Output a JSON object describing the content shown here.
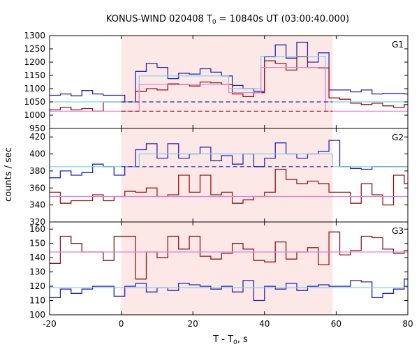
{
  "chart_data": {
    "type": "line",
    "title": "KONUS-WIND 020408 T",
    "title_sub": "0",
    "title_rest": " = 10840s UT (03:00:40.000)",
    "xlabel": "T - T",
    "xlabel_sub": "0",
    "xlabel_rest": ", s",
    "ylabel": "counts / sec",
    "xlim": [
      -20,
      80
    ],
    "x_ticks": [
      -20,
      0,
      20,
      40,
      60,
      80
    ],
    "shaded_interval": [
      0,
      59
    ],
    "colors": {
      "blue": "#2626b4",
      "dark_red": "#8c1a1a",
      "light_blue": "#7fd0ec",
      "pink": "#e87fd0",
      "shade": "#fde8e8"
    },
    "panels": [
      {
        "label": "G1",
        "ylim": [
          950,
          1300
        ],
        "y_ticks": [
          950,
          1000,
          1050,
          1100,
          1150,
          1200,
          1250,
          1300
        ],
        "series": [
          {
            "role": "counts",
            "color_key": "blue",
            "x": [
              -20,
              -17,
              -14,
              -11,
              -8,
              -5,
              -2,
              1,
              4,
              7,
              10,
              13,
              16,
              19,
              22,
              25,
              28,
              31,
              34,
              37,
              40,
              43,
              46,
              49,
              52,
              55,
              58,
              61,
              64,
              67,
              70,
              73,
              76,
              79
            ],
            "y": [
              1075,
              1080,
              1073,
              1093,
              1080,
              1075,
              1075,
              1050,
              1165,
              1195,
              1180,
              1138,
              1158,
              1155,
              1175,
              1162,
              1148,
              1112,
              1100,
              1090,
              1220,
              1265,
              1215,
              1275,
              1200,
              1235,
              1095,
              1095,
              1088,
              1095,
              1080,
              1082,
              1082,
              1080
            ]
          },
          {
            "role": "counts",
            "color_key": "dark_red",
            "x": [
              -20,
              -17,
              -14,
              -11,
              -8,
              -5,
              -2,
              1,
              4,
              7,
              10,
              13,
              16,
              19,
              22,
              25,
              28,
              31,
              34,
              37,
              40,
              43,
              46,
              49,
              52,
              55,
              58,
              61,
              64,
              67,
              70,
              73,
              76,
              79
            ],
            "y": [
              1020,
              1030,
              1020,
              1025,
              1015,
              1050,
              1050,
              1050,
              1090,
              1100,
              1095,
              1118,
              1115,
              1110,
              1125,
              1122,
              1115,
              1080,
              1070,
              1085,
              1205,
              1195,
              1170,
              1220,
              1180,
              1178,
              1065,
              1060,
              1045,
              1040,
              1045,
              1035,
              1030,
              1040
            ]
          },
          {
            "role": "model",
            "color_key": "light_blue",
            "x": [
              -20,
              5,
              5,
              30,
              30,
              39,
              39,
              57,
              57,
              80
            ],
            "y": [
              1050,
              1050,
              1148,
              1148,
              1100,
              1100,
              1222,
              1222,
              1050,
              1050
            ]
          },
          {
            "role": "model",
            "color_key": "pink",
            "x": [
              -20,
              5,
              5,
              30,
              30,
              39,
              39,
              57,
              57,
              80
            ],
            "y": [
              1015,
              1015,
              1115,
              1115,
              1085,
              1085,
              1180,
              1180,
              1015,
              1015
            ]
          },
          {
            "role": "background",
            "color_key": "blue",
            "dashed": true,
            "x": [
              0,
              59
            ],
            "y": [
              1050,
              1050
            ]
          },
          {
            "role": "background",
            "color_key": "dark_red",
            "dashed": true,
            "x": [
              0,
              59
            ],
            "y": [
              1015,
              1015
            ]
          }
        ]
      },
      {
        "label": "G2",
        "ylim": [
          320,
          430
        ],
        "y_ticks": [
          320,
          340,
          360,
          380,
          400,
          420
        ],
        "series": [
          {
            "role": "counts",
            "color_key": "blue",
            "x": [
              -20,
              -17,
              -14,
              -11,
              -8,
              -5,
              -2,
              1,
              4,
              7,
              10,
              13,
              16,
              19,
              22,
              25,
              28,
              31,
              34,
              37,
              40,
              43,
              46,
              49,
              52,
              55,
              58,
              61,
              64,
              67,
              70,
              73,
              76,
              79
            ],
            "y": [
              372,
              380,
              375,
              378,
              388,
              385,
              375,
              385,
              405,
              412,
              395,
              412,
              395,
              400,
              408,
              392,
              398,
              388,
              400,
              385,
              395,
              413,
              400,
              395,
              400,
              403,
              416,
              385,
              383,
              382,
              385,
              385,
              385,
              385
            ]
          },
          {
            "role": "counts",
            "color_key": "dark_red",
            "x": [
              -20,
              -17,
              -14,
              -11,
              -8,
              -5,
              -2,
              1,
              4,
              7,
              10,
              13,
              16,
              19,
              22,
              25,
              28,
              31,
              34,
              37,
              40,
              43,
              46,
              49,
              52,
              55,
              58,
              61,
              64,
              67,
              70,
              73,
              76,
              79
            ],
            "y": [
              355,
              342,
              345,
              345,
              352,
              345,
              350,
              356,
              355,
              360,
              350,
              352,
              375,
              355,
              375,
              352,
              355,
              342,
              346,
              350,
              355,
              382,
              370,
              365,
              368,
              365,
              355,
              355,
              342,
              365,
              352,
              340,
              375,
              365
            ]
          },
          {
            "role": "model",
            "color_key": "light_blue",
            "x": [
              -20,
              5,
              5,
              59,
              59,
              80
            ],
            "y": [
              385,
              385,
              400,
              400,
              385,
              385
            ]
          },
          {
            "role": "model",
            "color_key": "pink",
            "x": [
              -20,
              80
            ],
            "y": [
              350,
              350
            ]
          },
          {
            "role": "background",
            "color_key": "blue",
            "dashed": true,
            "x": [
              0,
              59
            ],
            "y": [
              385,
              385
            ]
          }
        ]
      },
      {
        "label": "G3",
        "ylim": [
          100,
          165
        ],
        "y_ticks": [
          100,
          110,
          120,
          130,
          140,
          150,
          160
        ],
        "series": [
          {
            "role": "counts",
            "color_key": "dark_red",
            "x": [
              -20,
              -17,
              -14,
              -11,
              -8,
              -5,
              -2,
              1,
              4,
              7,
              10,
              13,
              16,
              19,
              22,
              25,
              28,
              31,
              34,
              37,
              40,
              43,
              46,
              49,
              52,
              55,
              58,
              61,
              64,
              67,
              70,
              73,
              76,
              79
            ],
            "y": [
              136,
              155,
              150,
              144,
              144,
              138,
              155,
              155,
              125,
              144,
              140,
              155,
              146,
              155,
              141,
              139,
              143,
              150,
              146,
              138,
              137,
              151,
              139,
              144,
              147,
              135,
              158,
              142,
              145,
              155,
              154,
              146,
              143,
              145
            ]
          },
          {
            "role": "counts",
            "color_key": "blue",
            "x": [
              -20,
              -17,
              -14,
              -11,
              -8,
              -5,
              -2,
              1,
              4,
              7,
              10,
              13,
              16,
              19,
              22,
              25,
              28,
              31,
              34,
              37,
              40,
              43,
              46,
              49,
              52,
              55,
              58,
              61,
              64,
              67,
              70,
              73,
              76,
              79
            ],
            "y": [
              112,
              118,
              115,
              118,
              120,
              120,
              113,
              120,
              122,
              116,
              119,
              117,
              122,
              121,
              120,
              118,
              120,
              116,
              124,
              110,
              120,
              118,
              122,
              117,
              120,
              121,
              120,
              120,
              124,
              123,
              112,
              115,
              118,
              125
            ]
          },
          {
            "role": "model",
            "color_key": "pink",
            "x": [
              -20,
              80
            ],
            "y": [
              144,
              144
            ]
          },
          {
            "role": "model",
            "color_key": "light_blue",
            "x": [
              -20,
              80
            ],
            "y": [
              119,
              119
            ]
          }
        ]
      }
    ]
  }
}
